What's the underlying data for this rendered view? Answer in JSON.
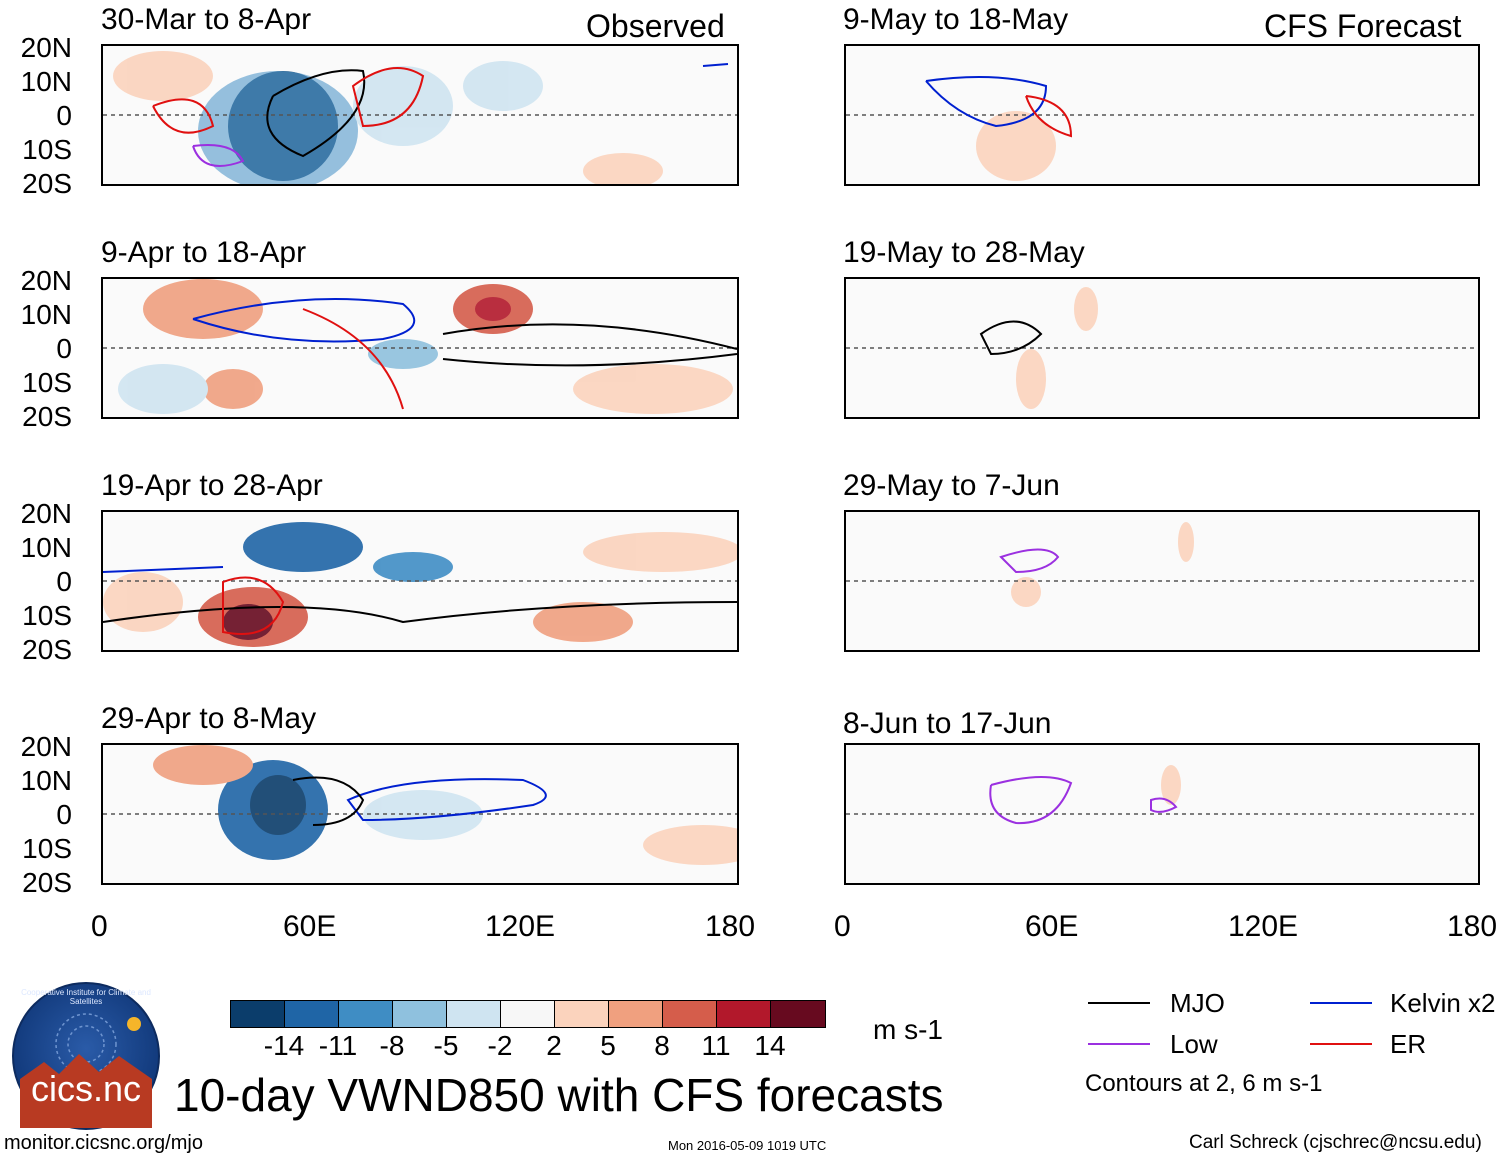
{
  "header": {
    "left": "Observed",
    "right": "CFS Forecast"
  },
  "observed_panels": [
    "30-Mar to 8-Apr",
    "9-Apr to 18-Apr",
    "19-Apr to 28-Apr",
    "29-Apr to 8-May"
  ],
  "forecast_panels": [
    "9-May to 18-May",
    "19-May to 28-May",
    "29-May to 7-Jun",
    "8-Jun to 17-Jun"
  ],
  "y_ticks": [
    "20N",
    "10N",
    "0",
    "10S",
    "20S"
  ],
  "x_ticks": [
    "0",
    "60E",
    "120E",
    "180"
  ],
  "colorbar": {
    "ticks": [
      "-14",
      "-11",
      "-8",
      "-5",
      "-2",
      "2",
      "5",
      "8",
      "11",
      "14"
    ],
    "units": "m s-1",
    "colors": [
      "#0b3d6b",
      "#1f65a6",
      "#3f8dc4",
      "#8fc1de",
      "#cfe4f1",
      "#f7f7f7",
      "#fbd3bd",
      "#f0a07f",
      "#d55d4b",
      "#b2182b",
      "#670a1f"
    ]
  },
  "legend": {
    "mjo": "MJO",
    "kelvin": "Kelvin x2",
    "low": "Low",
    "er": "ER",
    "note": "Contours at 2, 6 m s-1",
    "colors": {
      "mjo": "#000000",
      "kelvin": "#0020d0",
      "low": "#9b30e0",
      "er": "#e01010"
    }
  },
  "logo": {
    "text": "cics.nc",
    "ring": "Cooperative Institute for Climate and Satellites"
  },
  "title": "10-day VWND850 with CFS forecasts",
  "footer": {
    "url": "monitor.cicsnc.org/mjo",
    "timestamp": "Mon 2016-05-09 1019 UTC",
    "author": "Carl Schreck (cjschrec@ncsu.edu)"
  }
}
